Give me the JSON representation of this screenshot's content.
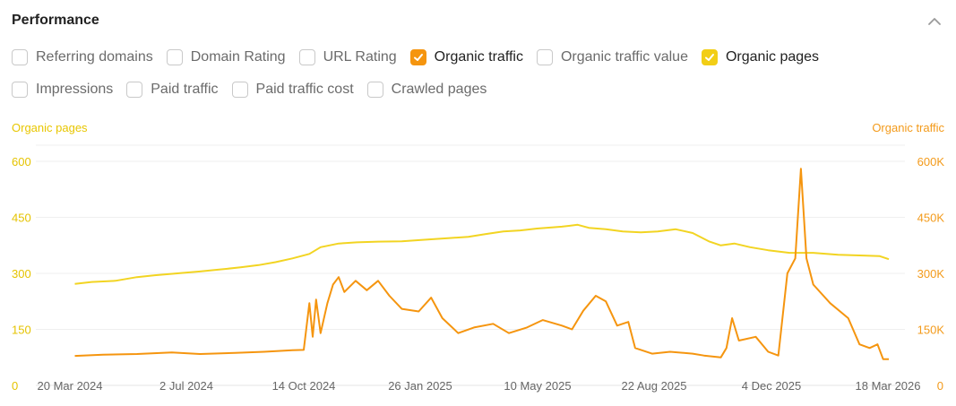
{
  "header": {
    "title": "Performance",
    "collapse_icon": "chevron-up-icon"
  },
  "filters": {
    "row1": [
      {
        "label": "Referring domains",
        "checked": false
      },
      {
        "label": "Domain Rating",
        "checked": false
      },
      {
        "label": "URL Rating",
        "checked": false
      },
      {
        "label": "Organic traffic",
        "checked": true,
        "color": "#f5950f"
      },
      {
        "label": "Organic traffic value",
        "checked": false
      },
      {
        "label": "Organic pages",
        "checked": true,
        "color": "#f2ce16"
      }
    ],
    "row2": [
      {
        "label": "Impressions",
        "checked": false
      },
      {
        "label": "Paid traffic",
        "checked": false
      },
      {
        "label": "Paid traffic cost",
        "checked": false
      },
      {
        "label": "Crawled pages",
        "checked": false
      }
    ]
  },
  "chart_data": {
    "type": "line",
    "left_axis_title": "Organic pages",
    "right_axis_title": "Organic traffic",
    "x_ticks": [
      "20 Mar 2024",
      "2 Jul 2024",
      "14 Oct 2024",
      "26 Jan 2025",
      "10 May 2025",
      "22 Aug 2025",
      "4 Dec 2025",
      "18 Mar 2026"
    ],
    "x_range": [
      "2024-03-20",
      "2026-03-18"
    ],
    "y_left": {
      "ticks": [
        "0",
        "150",
        "300",
        "450",
        "600"
      ],
      "ylim": [
        0,
        600
      ]
    },
    "y_right": {
      "ticks": [
        "0",
        "150K",
        "300K",
        "450K",
        "600K"
      ],
      "ylim": [
        0,
        600000
      ]
    },
    "grid": true,
    "series": [
      {
        "name": "Organic pages",
        "axis": "left",
        "color": "#f2d422",
        "points": [
          [
            "2024-03-26",
            272
          ],
          [
            "2024-04-10",
            277
          ],
          [
            "2024-05-01",
            280
          ],
          [
            "2024-05-20",
            290
          ],
          [
            "2024-06-05",
            295
          ],
          [
            "2024-06-25",
            300
          ],
          [
            "2024-07-15",
            305
          ],
          [
            "2024-08-01",
            310
          ],
          [
            "2024-08-20",
            316
          ],
          [
            "2024-09-05",
            322
          ],
          [
            "2024-09-20",
            330
          ],
          [
            "2024-10-05",
            340
          ],
          [
            "2024-10-20",
            352
          ],
          [
            "2024-10-30",
            370
          ],
          [
            "2024-11-15",
            380
          ],
          [
            "2024-12-01",
            383
          ],
          [
            "2024-12-20",
            385
          ],
          [
            "2025-01-10",
            386
          ],
          [
            "2025-01-30",
            390
          ],
          [
            "2025-02-20",
            394
          ],
          [
            "2025-03-10",
            398
          ],
          [
            "2025-03-25",
            405
          ],
          [
            "2025-04-10",
            412
          ],
          [
            "2025-04-25",
            415
          ],
          [
            "2025-05-10",
            420
          ],
          [
            "2025-06-01",
            425
          ],
          [
            "2025-06-15",
            430
          ],
          [
            "2025-06-25",
            422
          ],
          [
            "2025-07-10",
            418
          ],
          [
            "2025-07-25",
            412
          ],
          [
            "2025-08-10",
            410
          ],
          [
            "2025-08-25",
            412
          ],
          [
            "2025-09-10",
            418
          ],
          [
            "2025-09-25",
            408
          ],
          [
            "2025-10-10",
            385
          ],
          [
            "2025-10-20",
            375
          ],
          [
            "2025-11-01",
            380
          ],
          [
            "2025-11-15",
            370
          ],
          [
            "2025-12-01",
            362
          ],
          [
            "2025-12-20",
            355
          ],
          [
            "2026-01-10",
            355
          ],
          [
            "2026-02-01",
            350
          ],
          [
            "2026-02-20",
            348
          ],
          [
            "2026-03-10",
            346
          ],
          [
            "2026-03-18",
            338
          ]
        ]
      },
      {
        "name": "Organic traffic",
        "axis": "right",
        "color": "#f5950f",
        "points": [
          [
            "2024-03-26",
            79000
          ],
          [
            "2024-04-20",
            82000
          ],
          [
            "2024-05-20",
            84000
          ],
          [
            "2024-06-20",
            88000
          ],
          [
            "2024-07-15",
            84000
          ],
          [
            "2024-08-15",
            87000
          ],
          [
            "2024-09-10",
            90000
          ],
          [
            "2024-10-05",
            94000
          ],
          [
            "2024-10-15",
            95000
          ],
          [
            "2024-10-20",
            220000
          ],
          [
            "2024-10-23",
            130000
          ],
          [
            "2024-10-26",
            230000
          ],
          [
            "2024-10-30",
            140000
          ],
          [
            "2024-11-05",
            220000
          ],
          [
            "2024-11-10",
            270000
          ],
          [
            "2024-11-15",
            290000
          ],
          [
            "2024-11-20",
            250000
          ],
          [
            "2024-11-30",
            280000
          ],
          [
            "2024-12-10",
            255000
          ],
          [
            "2024-12-20",
            280000
          ],
          [
            "2024-12-30",
            240000
          ],
          [
            "2025-01-10",
            205000
          ],
          [
            "2025-01-25",
            198000
          ],
          [
            "2025-02-05",
            235000
          ],
          [
            "2025-02-15",
            180000
          ],
          [
            "2025-03-01",
            140000
          ],
          [
            "2025-03-15",
            155000
          ],
          [
            "2025-04-01",
            165000
          ],
          [
            "2025-04-15",
            140000
          ],
          [
            "2025-05-01",
            155000
          ],
          [
            "2025-05-15",
            175000
          ],
          [
            "2025-06-01",
            160000
          ],
          [
            "2025-06-10",
            150000
          ],
          [
            "2025-06-20",
            200000
          ],
          [
            "2025-07-01",
            240000
          ],
          [
            "2025-07-10",
            225000
          ],
          [
            "2025-07-20",
            160000
          ],
          [
            "2025-07-30",
            170000
          ],
          [
            "2025-08-05",
            100000
          ],
          [
            "2025-08-20",
            85000
          ],
          [
            "2025-09-05",
            90000
          ],
          [
            "2025-09-25",
            85000
          ],
          [
            "2025-10-05",
            80000
          ],
          [
            "2025-10-20",
            75000
          ],
          [
            "2025-10-25",
            100000
          ],
          [
            "2025-10-30",
            180000
          ],
          [
            "2025-11-05",
            120000
          ],
          [
            "2025-11-20",
            130000
          ],
          [
            "2025-12-01",
            90000
          ],
          [
            "2025-12-10",
            80000
          ],
          [
            "2025-12-18",
            300000
          ],
          [
            "2025-12-25",
            340000
          ],
          [
            "2025-12-30",
            580000
          ],
          [
            "2026-01-04",
            340000
          ],
          [
            "2026-01-10",
            270000
          ],
          [
            "2026-01-25",
            220000
          ],
          [
            "2026-02-10",
            180000
          ],
          [
            "2026-02-20",
            110000
          ],
          [
            "2026-03-01",
            100000
          ],
          [
            "2026-03-08",
            110000
          ],
          [
            "2026-03-13",
            70000
          ],
          [
            "2026-03-18",
            70000
          ]
        ]
      }
    ]
  }
}
